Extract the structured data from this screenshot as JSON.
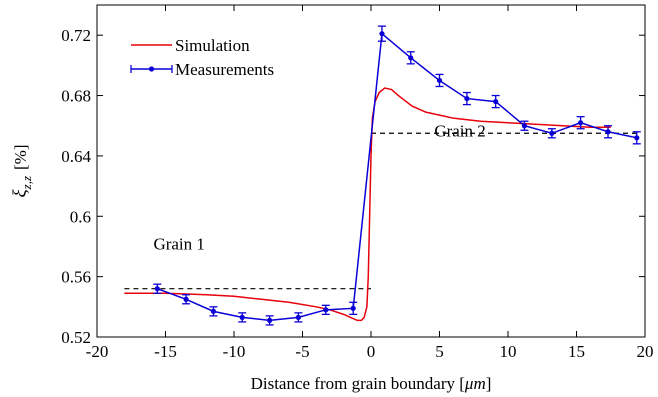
{
  "chart_data": {
    "type": "line",
    "xlabel_text": "Distance from grain boundary ",
    "xlabel_unit_left": "[",
    "xlabel_unit_sym": "μm",
    "xlabel_unit_right": "]",
    "ylabel_sym": "ξ",
    "ylabel_sub": "z,z",
    "ylabel_unit": "[%]",
    "xlim": [
      -20,
      20
    ],
    "ylim": [
      0.52,
      0.74
    ],
    "xticks": [
      -20,
      -15,
      -10,
      -5,
      0,
      5,
      10,
      15,
      20
    ],
    "xtick_labels": [
      "-20",
      "-15",
      "-10",
      "-5",
      "0",
      "5",
      "10",
      "15",
      "20"
    ],
    "yticks": [
      0.52,
      0.56,
      0.6,
      0.64,
      0.68,
      0.72
    ],
    "ytick_labels": [
      "0.52",
      "0.56",
      "0.6",
      "0.64",
      "0.68",
      "0.72"
    ],
    "grid": false,
    "legend_position": "top-left",
    "legend": [
      "Simulation",
      "Measurements"
    ],
    "annotations": [
      {
        "text": "Grain 1",
        "x": -14,
        "y": 0.578
      },
      {
        "text": "Grain 2",
        "x": 6.5,
        "y": 0.653
      }
    ],
    "reference_lines": [
      {
        "x": [
          -18,
          0
        ],
        "y": 0.552,
        "style": "dashed"
      },
      {
        "x": [
          0,
          19.6
        ],
        "y": 0.655,
        "style": "dashed"
      }
    ],
    "series": [
      {
        "name": "Simulation",
        "color": "#e8000b",
        "x": [
          -18,
          -15,
          -12,
          -10,
          -8,
          -6,
          -4,
          -3,
          -2,
          -1.5,
          -1,
          -0.7,
          -0.5,
          -0.3,
          -0.2,
          -0.1,
          0,
          0.1,
          0.3,
          0.6,
          1,
          1.5,
          2,
          3,
          4,
          5,
          6,
          8,
          10,
          12,
          14,
          16,
          17.5
        ],
        "y": [
          0.549,
          0.549,
          0.548,
          0.547,
          0.545,
          0.543,
          0.54,
          0.538,
          0.535,
          0.533,
          0.531,
          0.531,
          0.533,
          0.54,
          0.56,
          0.6,
          0.64,
          0.665,
          0.676,
          0.682,
          0.685,
          0.684,
          0.68,
          0.673,
          0.669,
          0.667,
          0.665,
          0.663,
          0.662,
          0.661,
          0.66,
          0.659,
          0.659
        ]
      },
      {
        "name": "Measurements",
        "color": "#0a00d6",
        "x": [
          -15.6,
          -13.5,
          -11.5,
          -9.4,
          -7.4,
          -5.3,
          -3.3,
          -1.3,
          0.8,
          2.9,
          5,
          7,
          9.1,
          11.2,
          13.2,
          15.3,
          17.3,
          19.4
        ],
        "y": [
          0.552,
          0.545,
          0.537,
          0.533,
          0.531,
          0.533,
          0.538,
          0.539,
          0.721,
          0.705,
          0.69,
          0.678,
          0.676,
          0.66,
          0.655,
          0.662,
          0.656,
          0.652
        ],
        "error": [
          0.003,
          0.003,
          0.003,
          0.003,
          0.003,
          0.003,
          0.003,
          0.004,
          0.005,
          0.004,
          0.004,
          0.004,
          0.004,
          0.003,
          0.003,
          0.004,
          0.004,
          0.004
        ]
      }
    ]
  }
}
